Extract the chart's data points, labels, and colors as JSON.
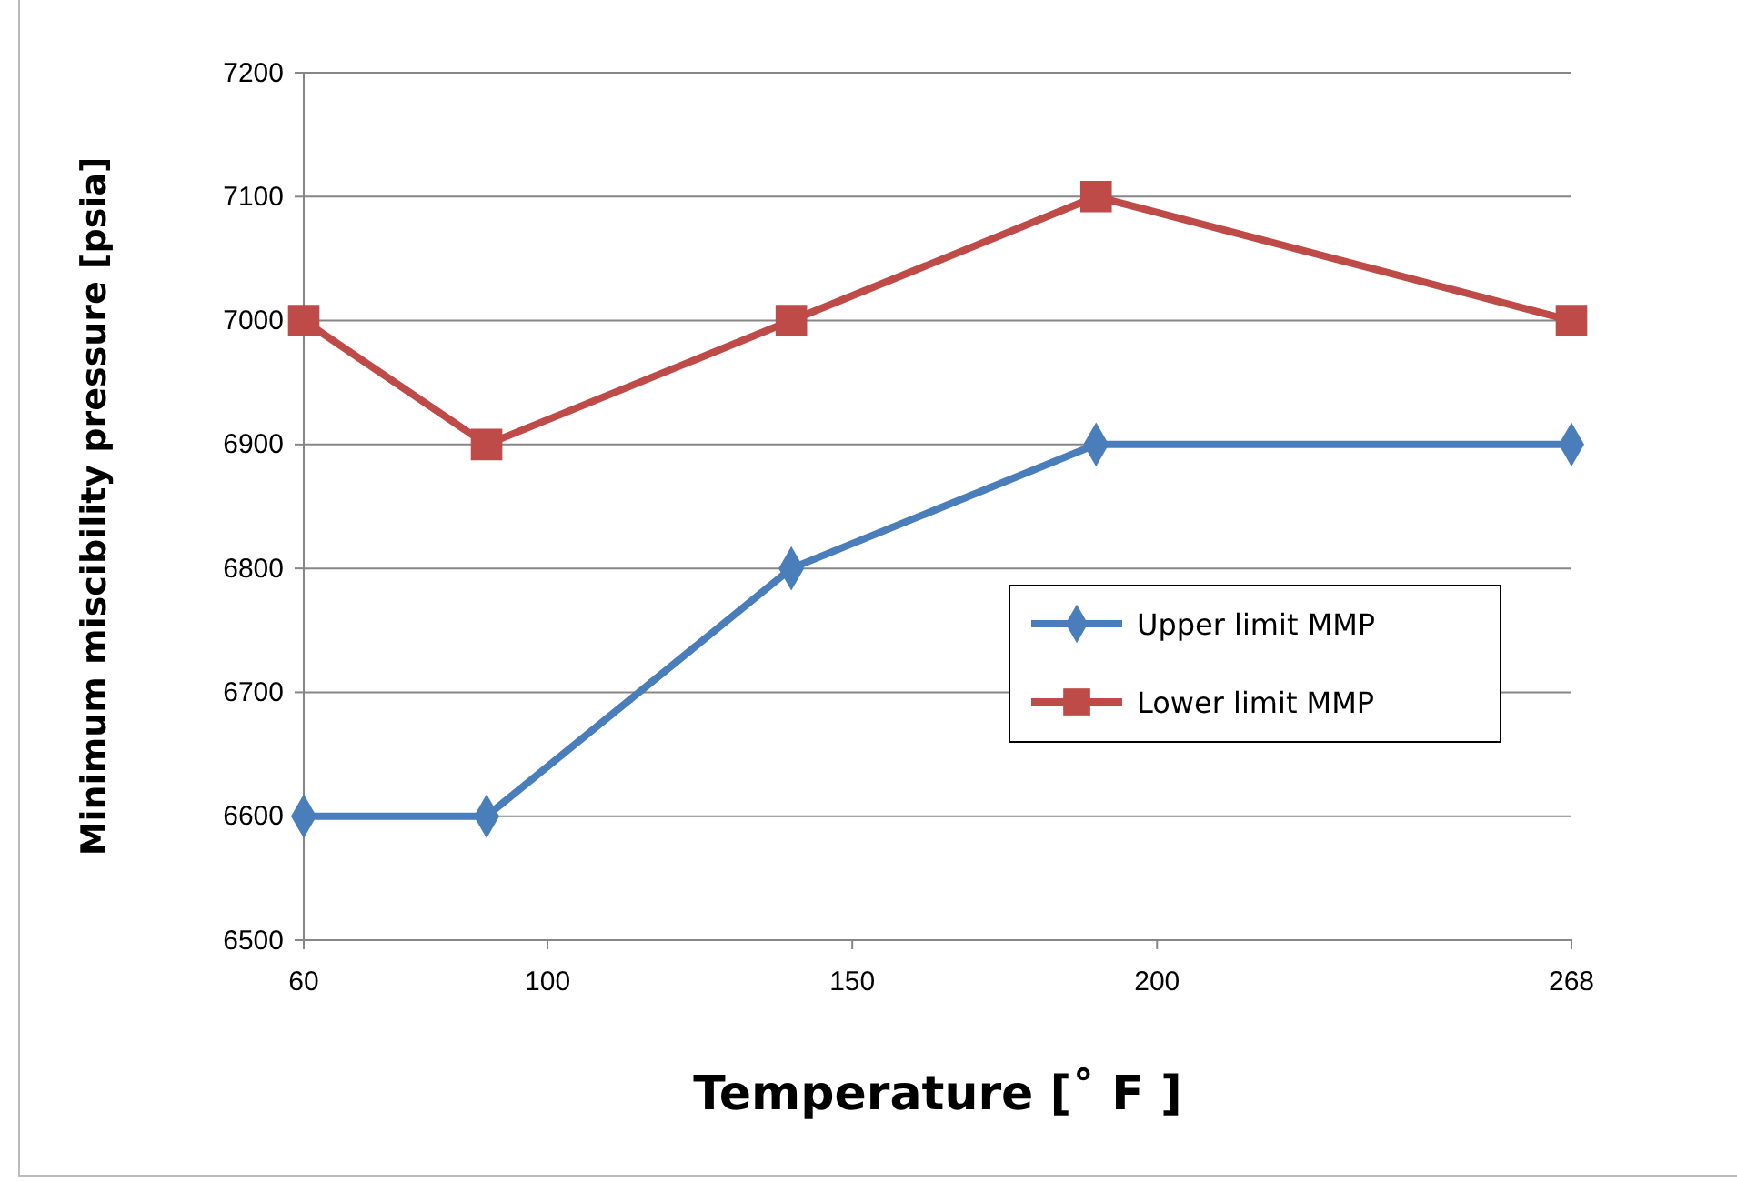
{
  "chart_data": {
    "type": "line",
    "xlabel": "Temperature [˚ F ]",
    "ylabel": "Minimum miscibility pressure [psia]",
    "xlim": [
      60,
      268
    ],
    "xticks": [
      60,
      100,
      150,
      200,
      268
    ],
    "ylim": [
      6500,
      7200
    ],
    "yticks": [
      6500,
      6600,
      6700,
      6800,
      6900,
      7000,
      7100,
      7200
    ],
    "grid": "y",
    "legend": "right",
    "line_style": "solid",
    "series": [
      {
        "name": "Upper limit MMP",
        "color": "#4a7ebb",
        "marker": "diamond",
        "x": [
          60,
          90,
          140,
          190,
          268
        ],
        "values": [
          6600,
          6600,
          6800,
          6900,
          6900
        ]
      },
      {
        "name": "Lower limit MMP",
        "color": "#be4b48",
        "marker": "square",
        "x": [
          60,
          90,
          140,
          190,
          268
        ],
        "values": [
          7000,
          6900,
          7000,
          7100,
          7000
        ]
      }
    ]
  }
}
